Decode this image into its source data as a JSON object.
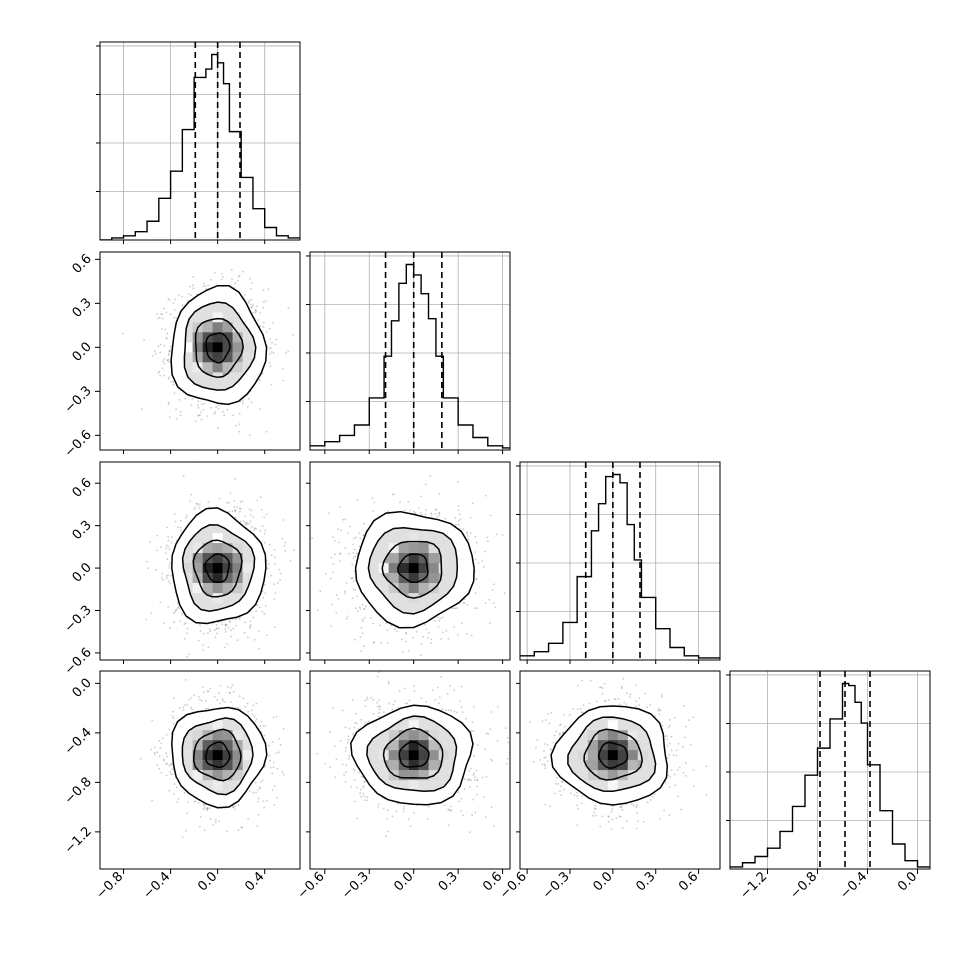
{
  "chart_data": {
    "type": "corner",
    "title": "",
    "grid": true,
    "colors": {
      "line": "#000000",
      "grid": "#b0b0b0",
      "points": "#8c8c8c"
    },
    "quantile_lines": "dashed",
    "n_params": 4,
    "params": [
      {
        "name": "",
        "range": [
          -1.0,
          0.7
        ],
        "quantiles": [
          -0.19,
          0.0,
          0.19
        ],
        "ticks": [
          -0.8,
          -0.4,
          0.0,
          0.4
        ],
        "tick_labels": [
          "−0.8",
          "−0.4",
          "0.0",
          "0.4"
        ],
        "center": 0.0,
        "sigma": 0.2
      },
      {
        "name": "",
        "range": [
          -0.7,
          0.65
        ],
        "quantiles": [
          -0.19,
          0.0,
          0.19
        ],
        "ticks": [
          -0.6,
          -0.3,
          0.0,
          0.3,
          0.6
        ],
        "tick_labels": [
          "−0.6",
          "−0.3",
          "0.0",
          "0.3",
          "0.6"
        ],
        "center": 0.0,
        "sigma": 0.2
      },
      {
        "name": "",
        "range": [
          -0.65,
          0.75
        ],
        "quantiles": [
          -0.19,
          0.0,
          0.19
        ],
        "ticks": [
          -0.6,
          -0.3,
          0.0,
          0.3,
          0.6
        ],
        "tick_labels": [
          "−0.6",
          "−0.3",
          "0.0",
          "0.3",
          "0.6"
        ],
        "center": 0.0,
        "sigma": 0.2
      },
      {
        "name": "",
        "range": [
          -1.5,
          0.1
        ],
        "quantiles": [
          -0.78,
          -0.58,
          -0.38
        ],
        "ticks": [
          -1.2,
          -0.8,
          -0.4,
          0.0
        ],
        "tick_labels": [
          "−1.2",
          "−0.8",
          "−0.4",
          "0.0"
        ],
        "center": -0.58,
        "sigma": 0.2
      }
    ],
    "histograms_1d": [
      {
        "param": 0,
        "bin_edges": [
          -1.0,
          -0.9,
          -0.8,
          -0.7,
          -0.6,
          -0.5,
          -0.4,
          -0.3,
          -0.2,
          -0.1,
          -0.05,
          0.0,
          0.05,
          0.1,
          0.2,
          0.3,
          0.4,
          0.5,
          0.6,
          0.7
        ],
        "counts": [
          0,
          1,
          2,
          4,
          9,
          20,
          33,
          53,
          78,
          82,
          89,
          85,
          75,
          52,
          30,
          15,
          6,
          2,
          1
        ]
      },
      {
        "param": 1,
        "bin_edges": [
          -0.7,
          -0.6,
          -0.5,
          -0.4,
          -0.3,
          -0.2,
          -0.15,
          -0.1,
          -0.05,
          0.0,
          0.05,
          0.1,
          0.15,
          0.2,
          0.3,
          0.4,
          0.5,
          0.6,
          0.65
        ],
        "counts": [
          2,
          4,
          7,
          12,
          25,
          45,
          62,
          80,
          89,
          84,
          75,
          63,
          45,
          25,
          12,
          6,
          2,
          1
        ]
      },
      {
        "param": 2,
        "bin_edges": [
          -0.65,
          -0.55,
          -0.45,
          -0.35,
          -0.25,
          -0.15,
          -0.1,
          -0.05,
          0.0,
          0.05,
          0.1,
          0.15,
          0.2,
          0.3,
          0.4,
          0.5,
          0.6,
          0.75
        ],
        "counts": [
          2,
          4,
          8,
          18,
          40,
          62,
          75,
          88,
          89,
          85,
          65,
          48,
          30,
          15,
          6,
          2,
          1
        ]
      },
      {
        "param": 3,
        "bin_edges": [
          -1.5,
          -1.4,
          -1.3,
          -1.2,
          -1.1,
          -1.0,
          -0.9,
          -0.8,
          -0.7,
          -0.6,
          -0.55,
          -0.5,
          -0.45,
          -0.4,
          -0.3,
          -0.2,
          -0.1,
          0.0,
          0.1
        ],
        "counts": [
          1,
          3,
          6,
          10,
          18,
          30,
          45,
          58,
          72,
          89,
          88,
          80,
          70,
          50,
          28,
          12,
          4,
          1
        ]
      }
    ],
    "contour_levels": "0.5, 1.0, 1.5 and 2.0 sigma (2D)",
    "panels_2d": [
      {
        "x_param": 0,
        "y_param": 1
      },
      {
        "x_param": 0,
        "y_param": 2
      },
      {
        "x_param": 1,
        "y_param": 2
      },
      {
        "x_param": 0,
        "y_param": 3
      },
      {
        "x_param": 1,
        "y_param": 3
      },
      {
        "x_param": 2,
        "y_param": 3
      }
    ]
  }
}
